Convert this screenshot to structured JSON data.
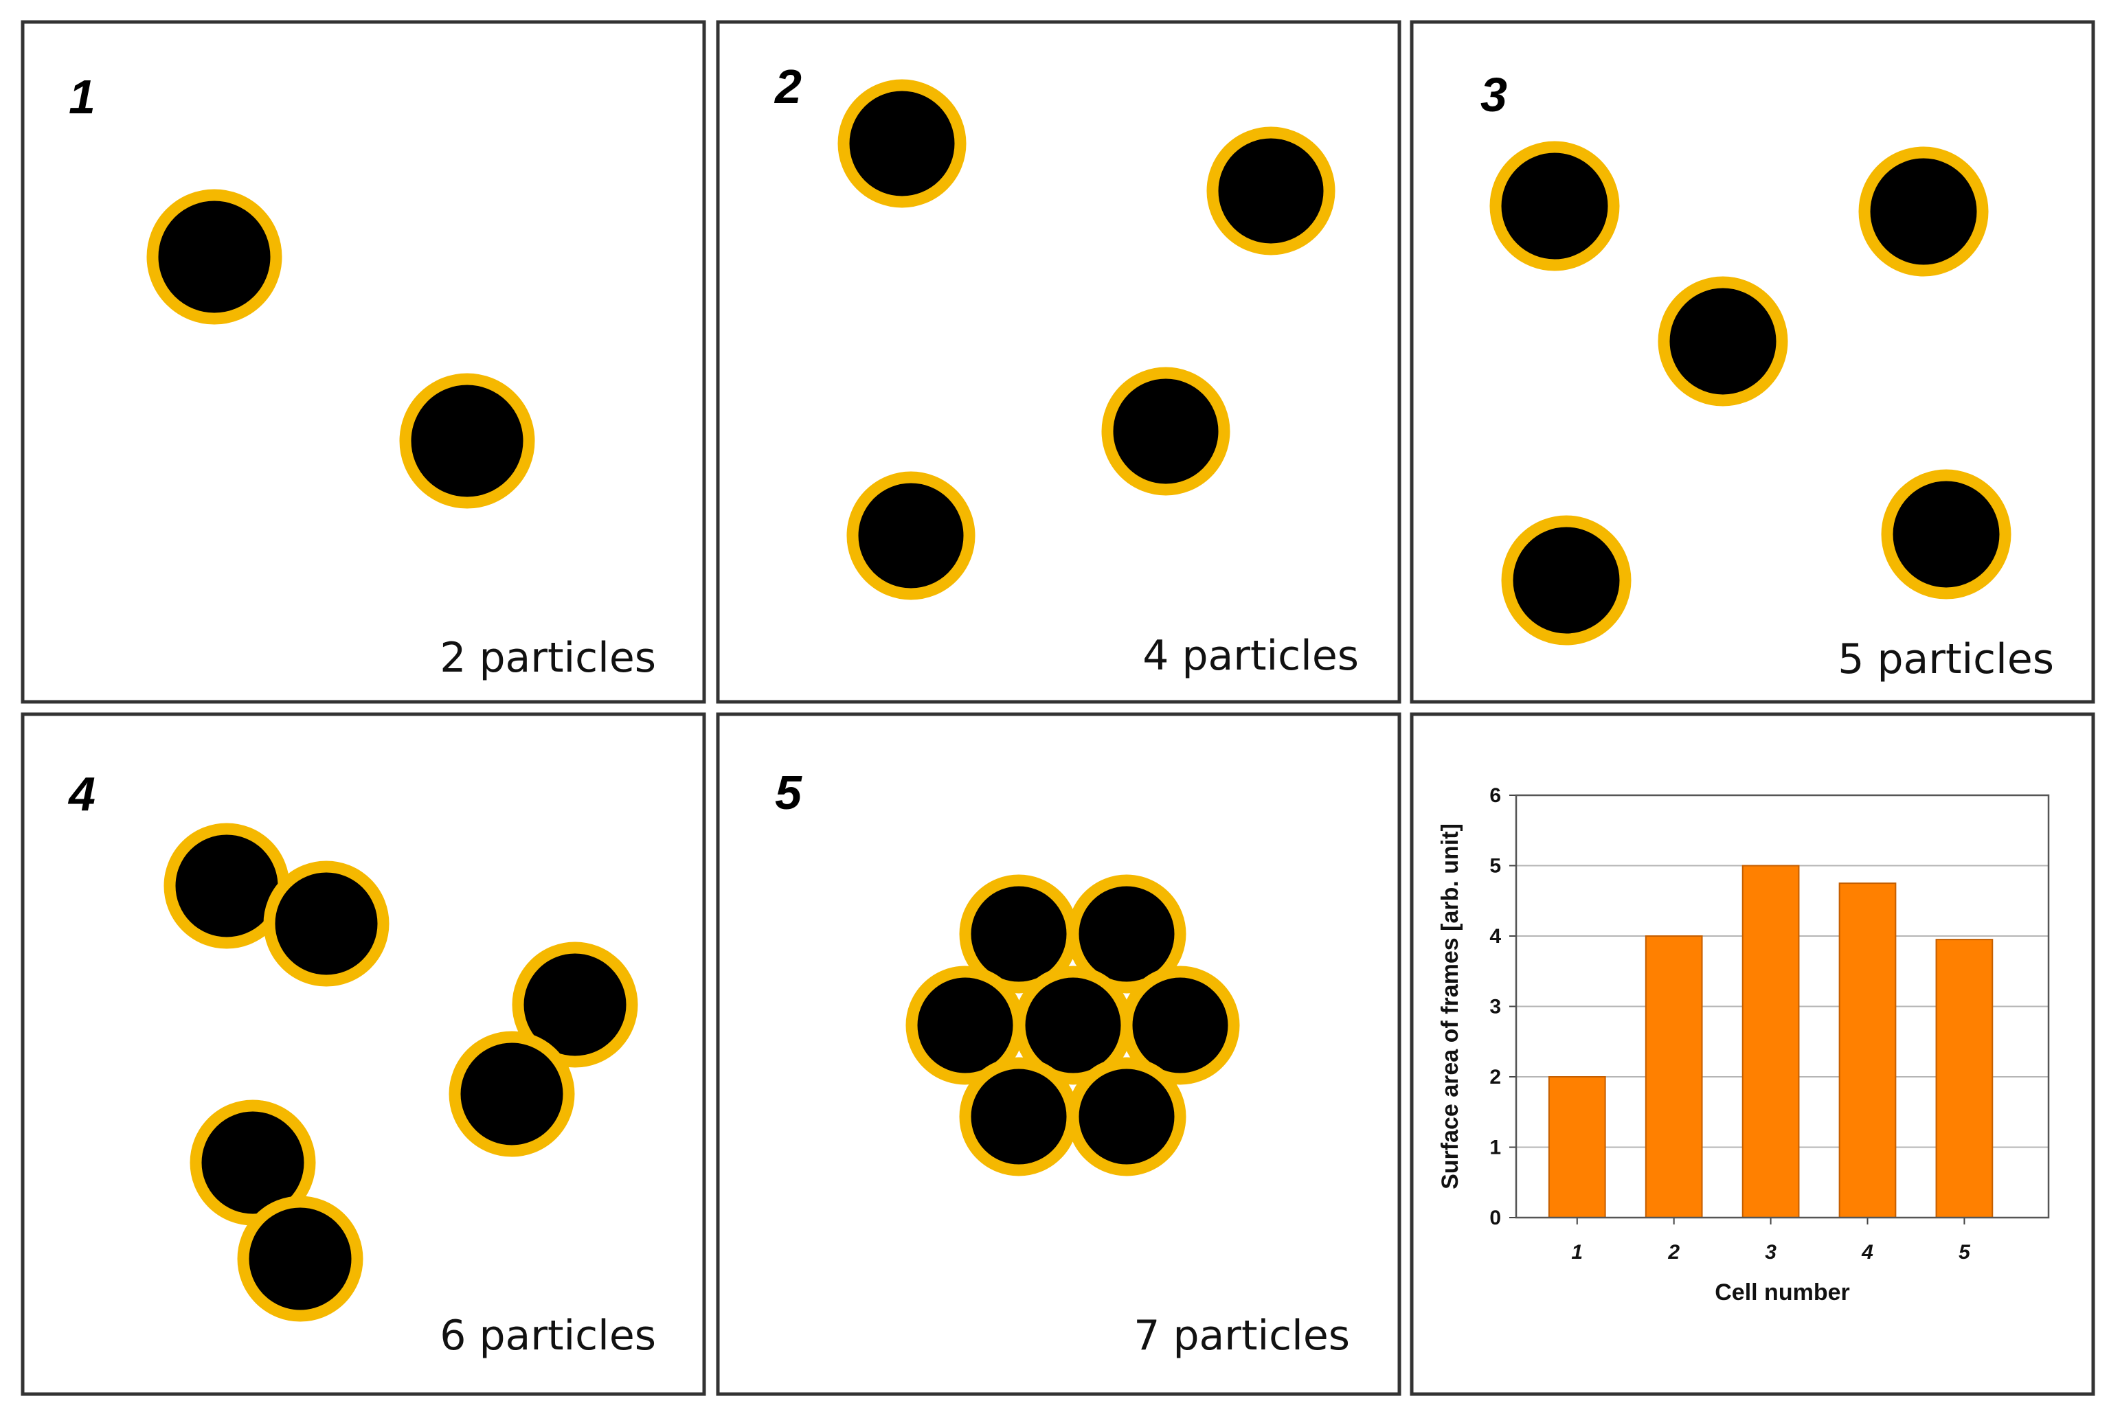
{
  "panels": [
    {
      "number": "1",
      "caption": "2 particles"
    },
    {
      "number": "2",
      "caption": "4 particles"
    },
    {
      "number": "3",
      "caption": "5 particles"
    },
    {
      "number": "4",
      "caption": "6 particles"
    },
    {
      "number": "5",
      "caption": "7 particles"
    }
  ],
  "colors": {
    "particle": "#000000",
    "frame": "#F5B800",
    "bar": "#FF8000",
    "panel_border": "#333333"
  },
  "chart_data": {
    "type": "bar",
    "categories": [
      "1",
      "2",
      "3",
      "4",
      "5"
    ],
    "values": [
      2.0,
      4.0,
      5.0,
      4.75,
      3.95
    ],
    "title": "",
    "xlabel": "Cell number",
    "ylabel": "Surface area of frames [arb. unit]",
    "ylim": [
      0,
      6
    ],
    "yticks": [
      "0",
      "1",
      "2",
      "3",
      "4",
      "5",
      "6"
    ],
    "grid": true,
    "bar_color": "#FF8000"
  }
}
